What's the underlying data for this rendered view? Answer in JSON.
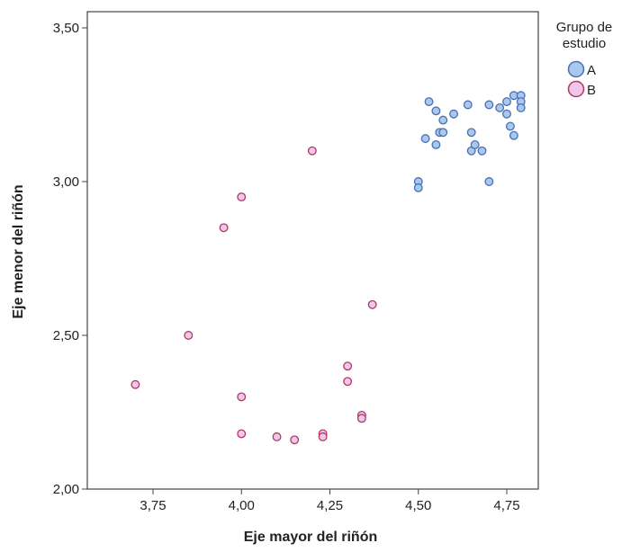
{
  "chart_data": {
    "type": "scatter",
    "xlabel": "Eje mayor del riñón",
    "ylabel": "Eje menor del riñón",
    "xlim": [
      3.5,
      4.9
    ],
    "ylim": [
      2.0,
      3.55
    ],
    "x_ticks": [
      3.75,
      4.0,
      4.25,
      4.5,
      4.75
    ],
    "x_tick_labels": [
      "3,75",
      "4,00",
      "4,25",
      "4,50",
      "4,75"
    ],
    "y_ticks": [
      2.0,
      2.5,
      3.0,
      3.5
    ],
    "y_tick_labels": [
      "2,00",
      "2,50",
      "3,00",
      "3,50"
    ],
    "grid": false,
    "legend": {
      "title_lines": [
        "Grupo de",
        "estudio"
      ],
      "placement": "right"
    },
    "series": [
      {
        "name": "A",
        "fill": "#a8c8ec",
        "stroke": "#4a6fb5",
        "points": [
          [
            4.5,
            3.0
          ],
          [
            4.5,
            2.98
          ],
          [
            4.52,
            3.14
          ],
          [
            4.53,
            3.26
          ],
          [
            4.55,
            3.23
          ],
          [
            4.55,
            3.12
          ],
          [
            4.56,
            3.16
          ],
          [
            4.57,
            3.2
          ],
          [
            4.57,
            3.16
          ],
          [
            4.6,
            3.22
          ],
          [
            4.64,
            3.25
          ],
          [
            4.65,
            3.16
          ],
          [
            4.65,
            3.1
          ],
          [
            4.66,
            3.12
          ],
          [
            4.68,
            3.1
          ],
          [
            4.7,
            3.25
          ],
          [
            4.7,
            3.0
          ],
          [
            4.73,
            3.24
          ],
          [
            4.75,
            3.26
          ],
          [
            4.75,
            3.22
          ],
          [
            4.76,
            3.18
          ],
          [
            4.77,
            3.28
          ],
          [
            4.77,
            3.15
          ],
          [
            4.79,
            3.28
          ],
          [
            4.79,
            3.26
          ],
          [
            4.79,
            3.24
          ]
        ]
      },
      {
        "name": "B",
        "fill": "#f0c6ee",
        "stroke": "#b03a5a",
        "points": [
          [
            3.7,
            2.34
          ],
          [
            3.85,
            2.5
          ],
          [
            3.95,
            2.85
          ],
          [
            4.0,
            2.95
          ],
          [
            4.0,
            2.3
          ],
          [
            4.0,
            2.18
          ],
          [
            4.1,
            2.17
          ],
          [
            4.15,
            2.16
          ],
          [
            4.2,
            3.1
          ],
          [
            4.23,
            2.18
          ],
          [
            4.23,
            2.17
          ],
          [
            4.3,
            2.4
          ],
          [
            4.3,
            2.35
          ],
          [
            4.34,
            2.24
          ],
          [
            4.34,
            2.23
          ],
          [
            4.37,
            2.6
          ]
        ]
      }
    ]
  }
}
